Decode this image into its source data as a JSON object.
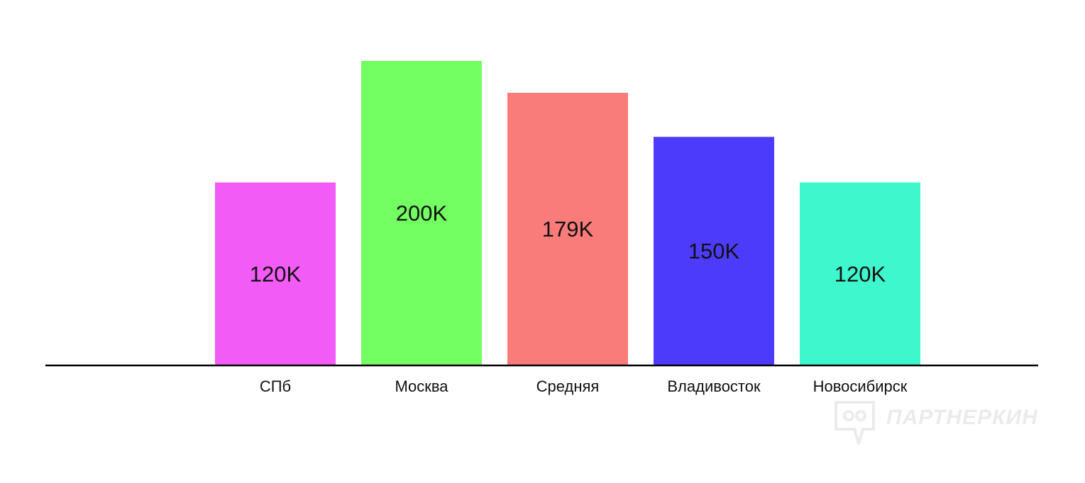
{
  "chart_data": {
    "type": "bar",
    "categories": [
      "СПб",
      "Москва",
      "Средняя",
      "Владивосток",
      "Новосибирск"
    ],
    "values": [
      120,
      200,
      179,
      150,
      120
    ],
    "value_labels": [
      "120K",
      "200K",
      "179K",
      "150K",
      "120K"
    ],
    "colors": [
      "#f25bf5",
      "#73ff61",
      "#f97c7b",
      "#4d3bfc",
      "#3ef7cc"
    ],
    "title": "",
    "xlabel": "",
    "ylabel": "",
    "ylim": [
      0,
      200
    ],
    "grid": false,
    "legend": "none"
  },
  "watermark": {
    "text": "ПАРТНЕРКИН",
    "icon": "partnerkin-logo-icon"
  }
}
